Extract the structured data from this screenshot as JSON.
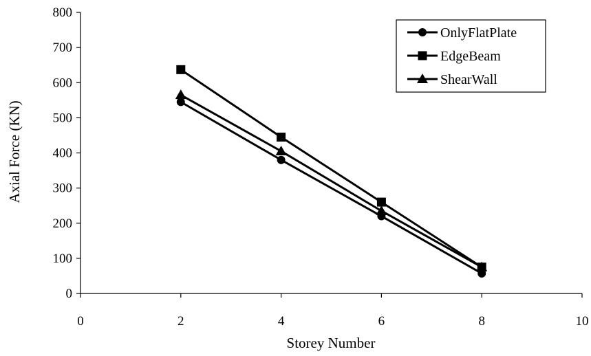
{
  "chart_data": {
    "type": "line",
    "xlabel": "Storey Number",
    "ylabel": "Axial Force  (KN)",
    "xlim": [
      0,
      10
    ],
    "ylim": [
      0,
      800
    ],
    "x_ticks": [
      0,
      2,
      4,
      6,
      8,
      10
    ],
    "y_ticks": [
      0,
      100,
      200,
      300,
      400,
      500,
      600,
      700,
      800
    ],
    "grid": false,
    "legend_position": "top-right",
    "x": [
      2,
      4,
      6,
      8
    ],
    "series": [
      {
        "name": "OnlyFlatPlate",
        "marker": "circle",
        "color": "#000000",
        "values": [
          545,
          380,
          220,
          57
        ]
      },
      {
        "name": "EdgeBeam",
        "marker": "square",
        "color": "#000000",
        "values": [
          637,
          445,
          260,
          75
        ]
      },
      {
        "name": "ShearWall",
        "marker": "triangle",
        "color": "#000000",
        "values": [
          565,
          405,
          235,
          75
        ]
      }
    ]
  }
}
